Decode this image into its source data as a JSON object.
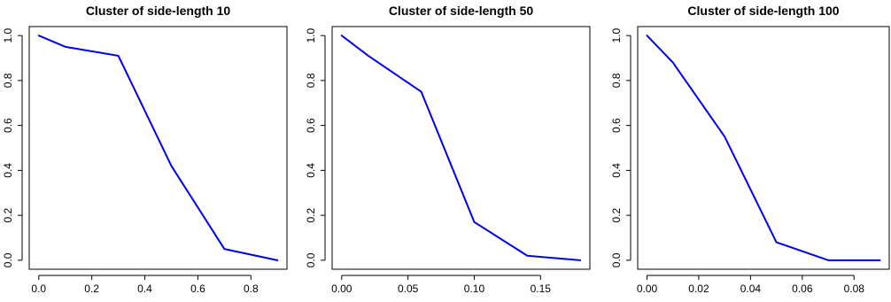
{
  "chart_data": [
    {
      "type": "line",
      "title": "Cluster of side-length 10",
      "xlabel": "",
      "ylabel": "",
      "xlim": [
        0,
        0.9
      ],
      "ylim": [
        0,
        1
      ],
      "x_ticks": [
        "0.0",
        "0.2",
        "0.4",
        "0.6",
        "0.8"
      ],
      "y_ticks": [
        "0.0",
        "0.2",
        "0.4",
        "0.6",
        "0.8",
        "1.0"
      ],
      "grid": false,
      "series": [
        {
          "color": "#0000ee",
          "x": [
            0.0,
            0.1,
            0.3,
            0.5,
            0.7,
            0.9
          ],
          "y": [
            1.0,
            0.95,
            0.91,
            0.42,
            0.05,
            0.0
          ]
        }
      ]
    },
    {
      "type": "line",
      "title": "Cluster of side-length 50",
      "xlabel": "",
      "ylabel": "",
      "xlim": [
        0,
        0.18
      ],
      "ylim": [
        0,
        1
      ],
      "x_ticks": [
        "0.00",
        "0.05",
        "0.10",
        "0.15"
      ],
      "y_ticks": [
        "0.0",
        "0.2",
        "0.4",
        "0.6",
        "0.8",
        "1.0"
      ],
      "grid": false,
      "series": [
        {
          "color": "#0000ee",
          "x": [
            0.0,
            0.02,
            0.06,
            0.1,
            0.14,
            0.18
          ],
          "y": [
            1.0,
            0.91,
            0.75,
            0.17,
            0.02,
            0.0
          ]
        }
      ]
    },
    {
      "type": "line",
      "title": "Cluster of side-length 100",
      "xlabel": "",
      "ylabel": "",
      "xlim": [
        0,
        0.09
      ],
      "ylim": [
        0,
        1
      ],
      "x_ticks": [
        "0.00",
        "0.02",
        "0.04",
        "0.06",
        "0.08"
      ],
      "y_ticks": [
        "0.0",
        "0.2",
        "0.4",
        "0.6",
        "0.8",
        "1.0"
      ],
      "grid": false,
      "series": [
        {
          "color": "#0000ee",
          "x": [
            0.0,
            0.01,
            0.03,
            0.05,
            0.07,
            0.09
          ],
          "y": [
            1.0,
            0.88,
            0.55,
            0.08,
            0.0,
            0.0
          ]
        }
      ]
    }
  ]
}
